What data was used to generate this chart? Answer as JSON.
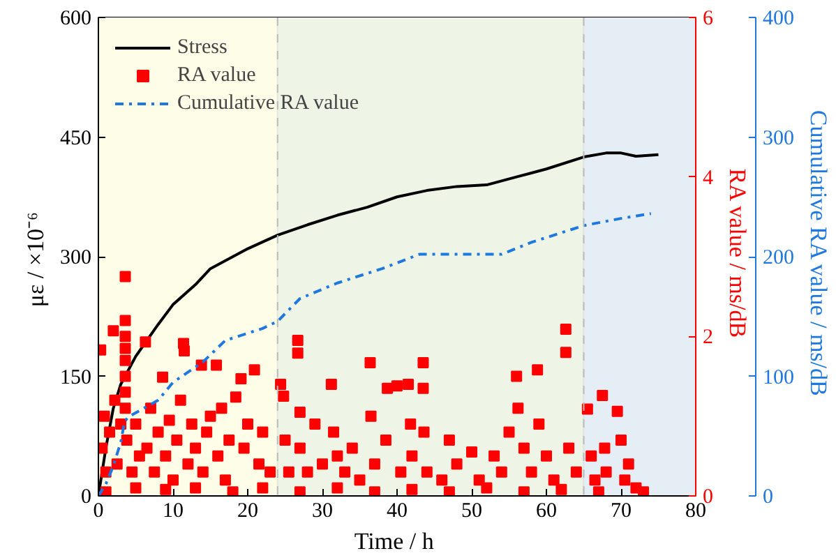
{
  "chart_data": {
    "type": "line",
    "xlabel": "Time  / h",
    "ylabel": "με  / ×10⁻⁶",
    "y2label": "RA value  / ms/dB",
    "y3label": "Cumulative RA value  / ms/dB",
    "xlim": [
      0,
      80
    ],
    "xticks": [
      0,
      10,
      20,
      30,
      40,
      50,
      60,
      70,
      80
    ],
    "ylim": [
      0,
      600
    ],
    "yticks": [
      0,
      150,
      300,
      450,
      600
    ],
    "y2lim": [
      0,
      6
    ],
    "y2ticks": [
      0,
      2,
      4,
      6
    ],
    "y3lim": [
      0,
      400
    ],
    "y3ticks": [
      0,
      100,
      200,
      300,
      400
    ],
    "legend": "top left",
    "bands": [
      {
        "axis": "x",
        "from": 0,
        "to": 24,
        "color": "#fefde8"
      },
      {
        "axis": "x",
        "from": 24,
        "to": 65,
        "color": "#eef5e6"
      },
      {
        "axis": "x",
        "from": 65,
        "to": 80,
        "color": "#e6eef5"
      }
    ],
    "ref_lines": [
      {
        "axis": "x",
        "value": 24,
        "color": "#bbbbbb",
        "line_style": "dashed"
      },
      {
        "axis": "x",
        "value": 65,
        "color": "#bbbbbb",
        "line_style": "dashed"
      }
    ],
    "series": [
      {
        "name": "Stress",
        "color": "#000000",
        "line_style": "solid",
        "marker": "none",
        "x": [
          0,
          1,
          2,
          3,
          5,
          8,
          10,
          13,
          15,
          18,
          20,
          24,
          28,
          32,
          36,
          40,
          44,
          48,
          52,
          56,
          60,
          65,
          68,
          70,
          72,
          75
        ],
        "values": [
          0,
          60,
          110,
          140,
          175,
          215,
          240,
          265,
          285,
          300,
          310,
          327,
          340,
          352,
          362,
          375,
          383,
          388,
          390,
          400,
          410,
          425,
          430,
          430,
          426,
          428
        ]
      },
      {
        "name": "RA value",
        "type": "scatter",
        "axis": "y2",
        "color": "#ff0000",
        "marker": "square",
        "x": [
          0.3,
          0.5,
          0.8,
          1.0,
          1.5,
          2.0,
          2.2,
          2.5,
          3,
          3.6,
          3.6,
          3.6,
          3.6,
          3.6,
          3.6,
          3.6,
          3.6,
          3.8,
          4.5,
          5,
          5.5,
          6.3,
          6.5,
          7,
          7.5,
          8,
          8.6,
          9,
          9.5,
          10,
          10.5,
          11,
          11.4,
          11.5,
          12,
          12.5,
          13,
          13.8,
          14,
          14.5,
          15,
          15.8,
          16,
          16.5,
          17,
          17.5,
          18.4,
          19.1,
          19.5,
          20,
          20.9,
          21.5,
          22,
          23,
          24.4,
          24.8,
          25,
          25.5,
          26.7,
          26.7,
          27,
          27,
          28,
          29,
          30,
          31.2,
          31.5,
          32,
          33,
          34,
          35,
          36.4,
          36.5,
          37,
          38.7,
          38.5,
          40,
          40.5,
          41.5,
          41.8,
          42,
          43.5,
          43.5,
          43.6,
          44,
          46,
          47,
          48,
          50,
          51,
          53,
          54,
          55,
          56,
          56.2,
          57,
          58,
          58.8,
          59,
          60,
          61,
          62.6,
          62.6,
          63,
          64,
          65.5,
          66,
          66.5,
          67.5,
          67.8,
          68,
          69.5,
          70,
          70.5,
          71,
          72,
          73,
          1,
          5,
          9,
          13,
          18,
          22,
          27,
          32,
          37,
          42,
          47,
          52,
          57,
          62,
          67
        ],
        "values": [
          1.83,
          0.6,
          1.0,
          0.3,
          0.8,
          2.07,
          1.2,
          0.4,
          0.9,
          2.75,
          2.2,
          2.0,
          1.85,
          1.7,
          1.5,
          1.3,
          1.1,
          0.7,
          0.3,
          0.9,
          0.5,
          1.93,
          0.6,
          1.1,
          0.3,
          0.8,
          1.49,
          0.5,
          0.95,
          0.2,
          0.7,
          1.2,
          1.91,
          1.82,
          0.4,
          0.9,
          0.6,
          1.64,
          0.3,
          0.8,
          1.0,
          1.64,
          0.5,
          1.1,
          0.2,
          0.7,
          1.24,
          1.47,
          0.6,
          0.9,
          1.58,
          0.4,
          0.8,
          0.3,
          1.4,
          1.25,
          0.7,
          0.3,
          1.95,
          1.79,
          1.05,
          0.6,
          0.3,
          0.9,
          0.4,
          1.4,
          0.8,
          0.5,
          0.3,
          0.6,
          0.2,
          1.67,
          1.0,
          0.4,
          1.35,
          0.7,
          1.38,
          0.3,
          1.4,
          0.9,
          0.5,
          1.67,
          1.35,
          0.8,
          0.3,
          0.2,
          0.7,
          0.4,
          0.55,
          0.2,
          0.5,
          0.3,
          0.8,
          1.5,
          1.1,
          0.6,
          0.3,
          1.58,
          0.9,
          0.5,
          0.2,
          2.09,
          1.8,
          0.6,
          0.3,
          1.09,
          0.5,
          0.2,
          1.26,
          0.6,
          0.3,
          1.06,
          0.7,
          0.2,
          0.4,
          0.1,
          0.05,
          0.05,
          0.1,
          0.08,
          0.1,
          0.05,
          0.1,
          0.05,
          0.1,
          0.05,
          0.08,
          0.05,
          0.1,
          0.05,
          0.08,
          0.05
        ]
      },
      {
        "name": "Cumulative RA value",
        "axis": "y3",
        "color": "#1f78e0",
        "line_style": "dashdot",
        "marker": "none",
        "x": [
          0,
          1,
          2,
          3,
          3.5,
          4,
          8,
          10,
          14,
          17,
          20,
          22,
          24,
          27,
          32,
          38,
          43,
          54,
          58,
          65,
          70,
          74
        ],
        "values": [
          0,
          10,
          25,
          45,
          62,
          66,
          80,
          95,
          112,
          130,
          136,
          140,
          146,
          165,
          178,
          190,
          202,
          202,
          212,
          226,
          232,
          236
        ]
      }
    ]
  }
}
